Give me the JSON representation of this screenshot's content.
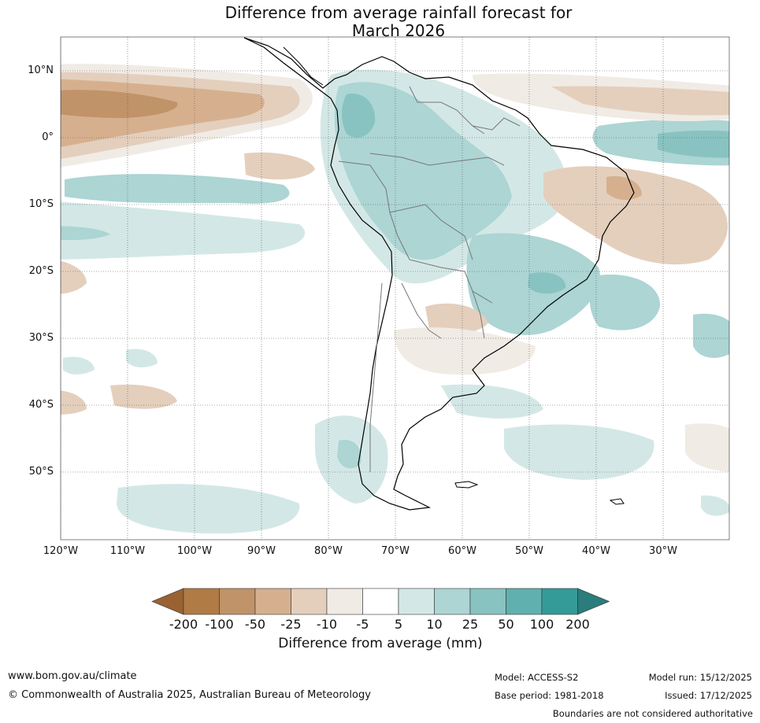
{
  "title": {
    "line1": "Difference from average rainfall forecast for",
    "line2": "March 2026"
  },
  "lat_labels": [
    "10°N",
    "0°",
    "10°S",
    "20°S",
    "30°S",
    "40°S",
    "50°S"
  ],
  "lon_labels": [
    "120°W",
    "110°W",
    "100°W",
    "90°W",
    "80°W",
    "70°W",
    "60°W",
    "50°W",
    "40°W",
    "30°W"
  ],
  "colorbar": {
    "title": "Difference from average (mm)",
    "ticks": [
      "-200",
      "-100",
      "-50",
      "-25",
      "-10",
      "-5",
      "5",
      "10",
      "25",
      "50",
      "100",
      "200"
    ],
    "colors": [
      "#9a6232",
      "#b07b45",
      "#c09369",
      "#d6b08e",
      "#e4cfbd",
      "#f1ebe5",
      "#ffffff",
      "#d3e8e6",
      "#acd5d4",
      "#88c3c1",
      "#5fb0ae",
      "#359b98",
      "#2a7d7b"
    ]
  },
  "footer": {
    "website": "www.bom.gov.au/climate",
    "copyright": "© Commonwealth of Australia 2025, Australian Bureau of Meteorology",
    "model": "Model: ACCESS-S2",
    "base_period": "Base period: 1981-2018",
    "model_run": "Model run: 15/12/2025",
    "issued": "Issued: 17/12/2025",
    "disclaimer": "Boundaries are not considered authoritative"
  }
}
